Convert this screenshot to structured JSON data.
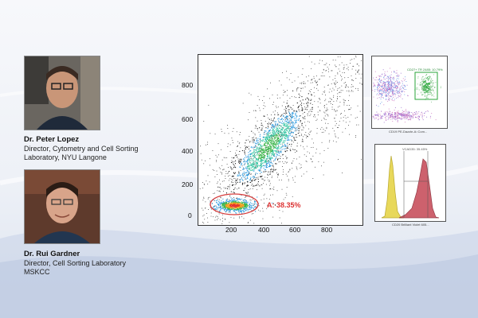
{
  "speakers": [
    {
      "photo": "speaker-1-portrait",
      "name": "Dr. Peter Lopez",
      "role": "Director, Cytometry and Cell Sorting",
      "affiliation": "Laboratory, NYU Langone"
    },
    {
      "photo": "speaker-2-portrait",
      "name": "Dr. Rui Gardner",
      "role": "Director, Cell Sorting Laboratory",
      "affiliation": "MSKCC"
    }
  ],
  "main_plot": {
    "x_ticks": [
      "200",
      "400",
      "600",
      "800"
    ],
    "y_ticks": [
      "0",
      "200",
      "400",
      "600",
      "800"
    ],
    "gate_label": "A: 38.35%",
    "gate_color": "#d63b3b"
  },
  "inset_top": {
    "gate_label": "CD27+ TR 2485: 10.79%",
    "x_label": "CD19 PE-Dazzle-A::Com...",
    "gate_color": "#2aa63a"
  },
  "inset_bottom": {
    "gate_label": "VCAD35: 35.45%",
    "x_label": "CD20 Brilliant Violet 605..."
  }
}
